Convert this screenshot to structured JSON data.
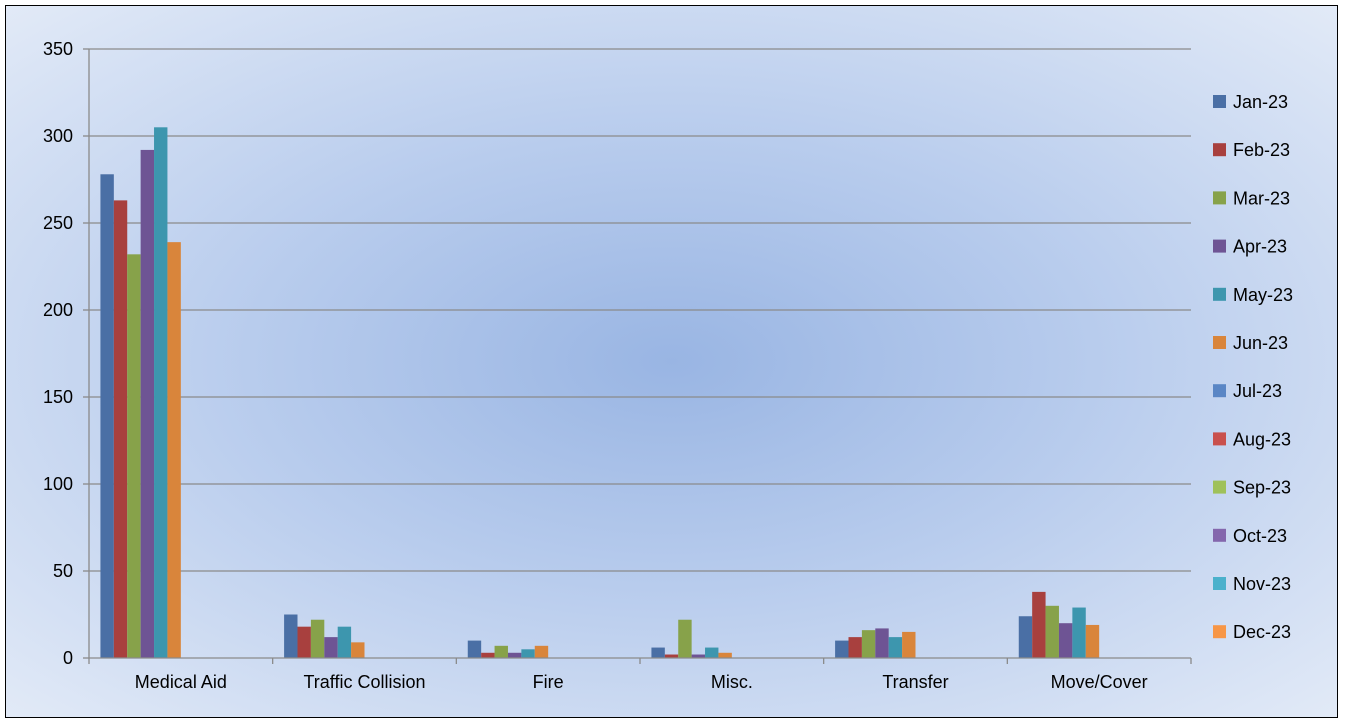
{
  "chart_data": {
    "type": "bar",
    "title": "",
    "xlabel": "",
    "ylabel": "",
    "ylim": [
      0,
      350
    ],
    "yticks": [
      0,
      50,
      100,
      150,
      200,
      250,
      300,
      350
    ],
    "grid": true,
    "legend_position": "right",
    "categories": [
      "Medical Aid",
      "Traffic Collision",
      "Fire",
      "Misc.",
      "Transfer",
      "Move/Cover"
    ],
    "series": [
      {
        "name": "Jan-23",
        "color": "#4a6fa5",
        "values": [
          278,
          25,
          10,
          6,
          10,
          24
        ]
      },
      {
        "name": "Feb-23",
        "color": "#a8403e",
        "values": [
          263,
          18,
          3,
          2,
          12,
          38
        ]
      },
      {
        "name": "Mar-23",
        "color": "#87a24a",
        "values": [
          232,
          22,
          7,
          22,
          16,
          30
        ]
      },
      {
        "name": "Apr-23",
        "color": "#6e5494",
        "values": [
          292,
          12,
          3,
          2,
          17,
          20
        ]
      },
      {
        "name": "May-23",
        "color": "#3d96ae",
        "values": [
          305,
          18,
          5,
          6,
          12,
          29
        ]
      },
      {
        "name": "Jun-23",
        "color": "#d9853b",
        "values": [
          239,
          9,
          7,
          3,
          15,
          19
        ]
      },
      {
        "name": "Jul-23",
        "color": "#5a86c5",
        "values": [
          null,
          null,
          null,
          null,
          null,
          null
        ]
      },
      {
        "name": "Aug-23",
        "color": "#c9504d",
        "values": [
          null,
          null,
          null,
          null,
          null,
          null
        ]
      },
      {
        "name": "Sep-23",
        "color": "#9fc15a",
        "values": [
          null,
          null,
          null,
          null,
          null,
          null
        ]
      },
      {
        "name": "Oct-23",
        "color": "#8467ad",
        "values": [
          null,
          null,
          null,
          null,
          null,
          null
        ]
      },
      {
        "name": "Nov-23",
        "color": "#4bb1cc",
        "values": [
          null,
          null,
          null,
          null,
          null,
          null
        ]
      },
      {
        "name": "Dec-23",
        "color": "#f79646",
        "values": [
          null,
          null,
          null,
          null,
          null,
          null
        ]
      }
    ]
  }
}
